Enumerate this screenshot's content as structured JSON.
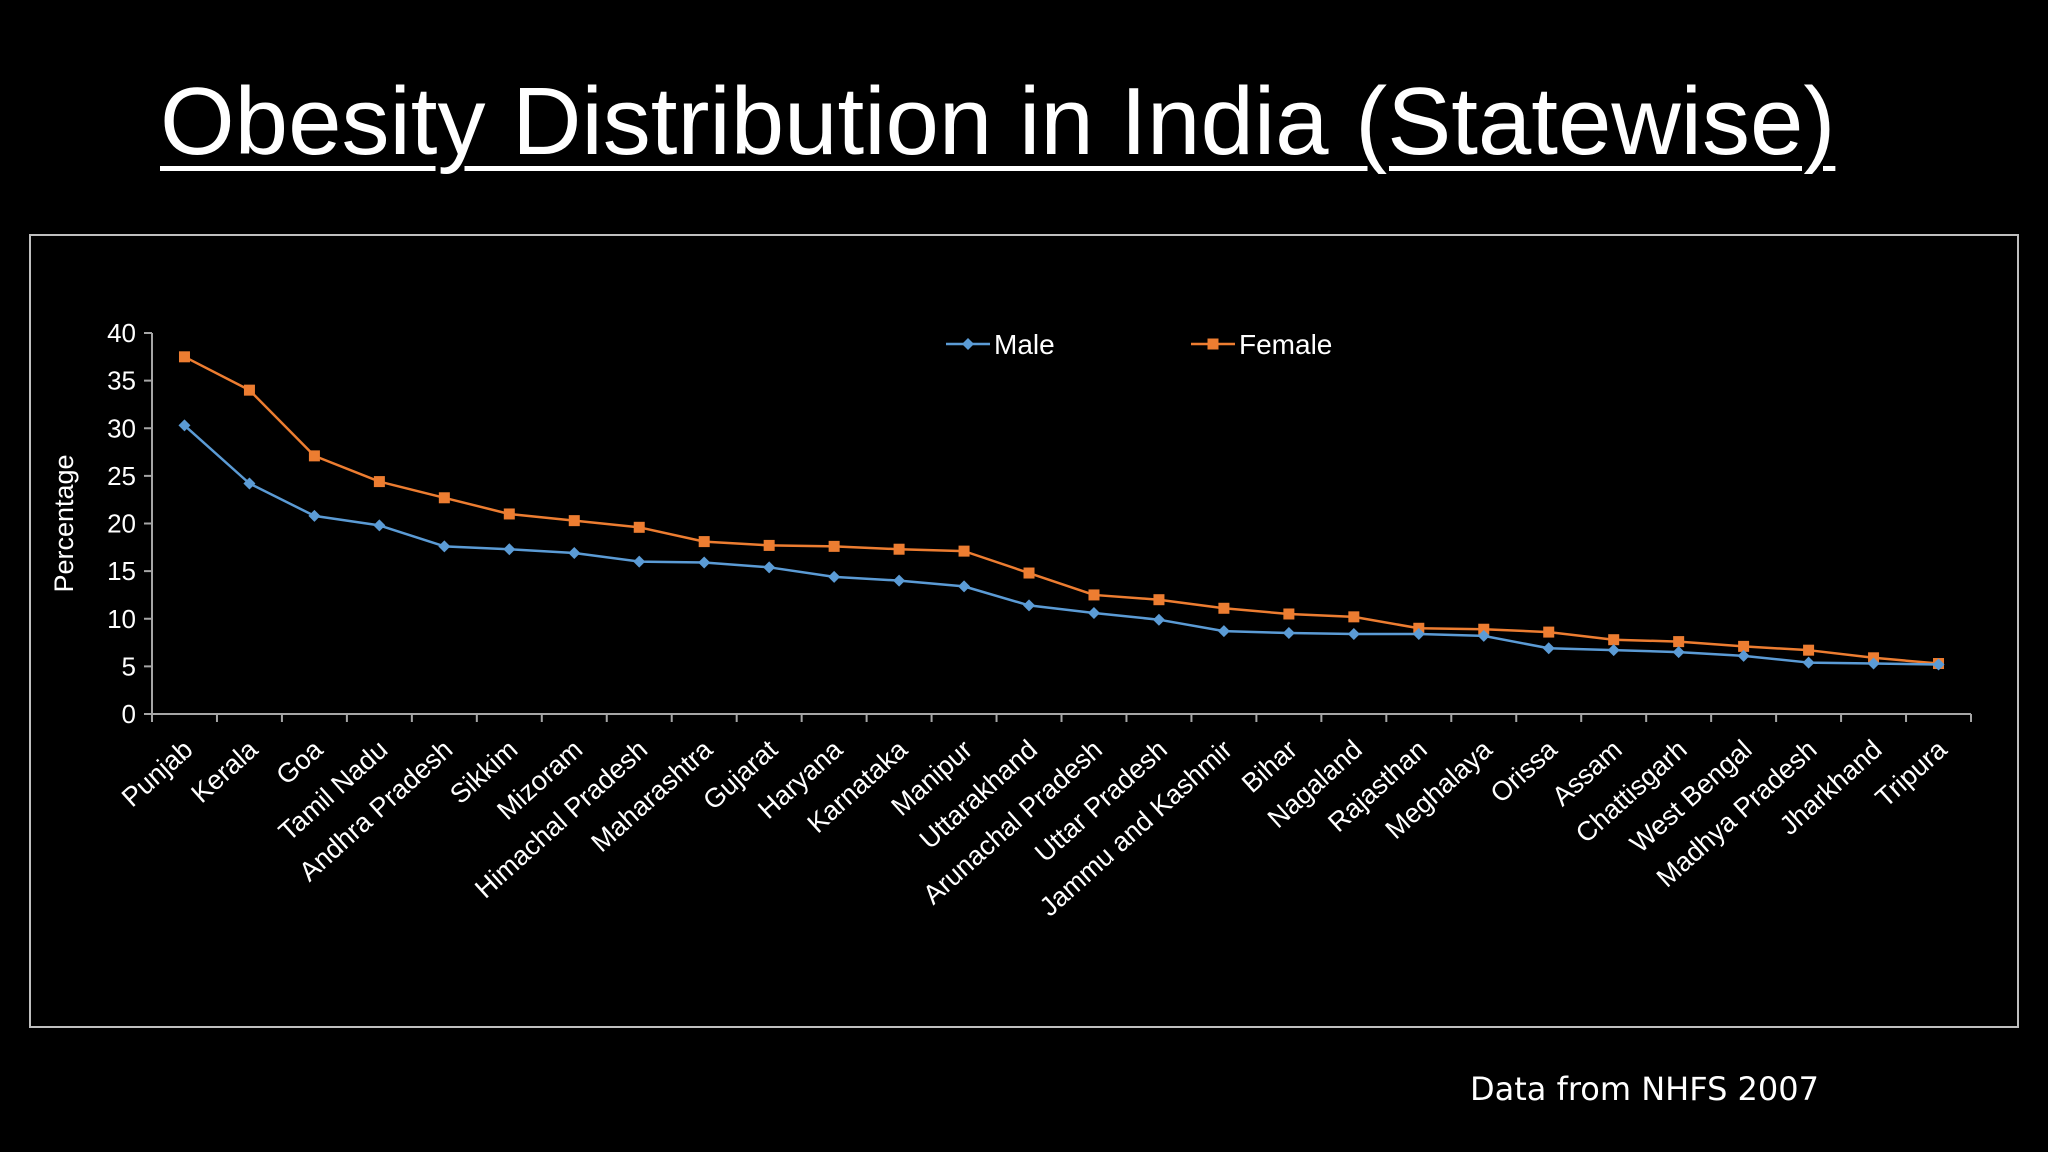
{
  "slide": {
    "title": "Obesity Distribution in India (Statewise)",
    "source_note": "Data from NHFS 2007"
  },
  "chart_data": {
    "type": "line",
    "title": "",
    "xlabel": "",
    "ylabel": "Percentage",
    "ylim": [
      0,
      40
    ],
    "yticks": [
      0,
      5,
      10,
      15,
      20,
      25,
      30,
      35,
      40
    ],
    "grid": false,
    "legend_position": "top-center",
    "categories": [
      "Punjab",
      "Kerala",
      "Goa",
      "Tamil Nadu",
      "Andhra Pradesh",
      "Sikkim",
      "Mizoram",
      "Himachal Pradesh",
      "Maharashtra",
      "Gujarat",
      "Haryana",
      "Karnataka",
      "Manipur",
      "Uttarakhand",
      "Arunachal Pradesh",
      "Uttar Pradesh",
      "Jammu and Kashmir",
      "Bihar",
      "Nagaland",
      "Rajasthan",
      "Meghalaya",
      "Orissa",
      "Assam",
      "Chattisgarh",
      "West Bengal",
      "Madhya Pradesh",
      "Jharkhand",
      "Tripura"
    ],
    "series": [
      {
        "name": "Male",
        "color": "#5b9bd5",
        "marker": "diamond",
        "values": [
          30.3,
          24.2,
          20.8,
          19.8,
          17.6,
          17.3,
          16.9,
          16.0,
          15.9,
          15.4,
          14.4,
          14.0,
          13.4,
          11.4,
          10.6,
          9.9,
          8.7,
          8.5,
          8.4,
          8.4,
          8.2,
          6.9,
          6.7,
          6.5,
          6.1,
          5.4,
          5.3,
          5.2
        ]
      },
      {
        "name": "Female",
        "color": "#ed7d31",
        "marker": "square",
        "values": [
          37.5,
          34.0,
          27.1,
          24.4,
          22.7,
          21.0,
          20.3,
          19.6,
          18.1,
          17.7,
          17.6,
          17.3,
          17.1,
          14.8,
          12.5,
          12.0,
          11.1,
          10.5,
          10.2,
          9.0,
          8.9,
          8.6,
          7.8,
          7.6,
          7.1,
          6.7,
          5.9,
          5.3
        ]
      }
    ]
  }
}
